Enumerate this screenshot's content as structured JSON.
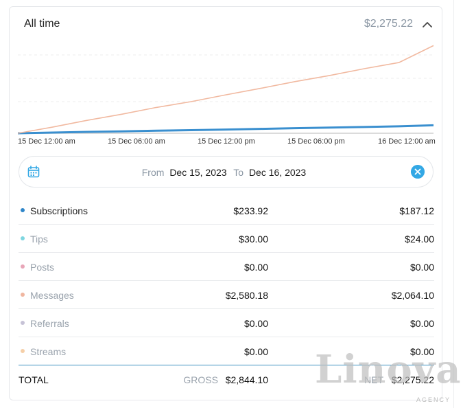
{
  "header": {
    "title": "All time",
    "amount": "$2,275.22",
    "collapse_icon": "chevron-up-icon"
  },
  "chart_data": {
    "type": "line",
    "x_ticks": [
      "15 Dec 12:00 am",
      "15 Dec 06:00 am",
      "15 Dec 12:00 pm",
      "15 Dec 06:00 pm",
      "16 Dec 12:00 am"
    ],
    "x": [
      0,
      2,
      4,
      6,
      8,
      10,
      12,
      14,
      16,
      18,
      20,
      22,
      24
    ],
    "series": [
      {
        "color": "#f1b9a0",
        "values": [
          0,
          180,
          380,
          560,
          760,
          930,
          1130,
          1320,
          1520,
          1700,
          1900,
          2080,
          2580
        ]
      },
      {
        "color": "#3a8fcf",
        "values": [
          0,
          20,
          40,
          55,
          75,
          90,
          110,
          130,
          150,
          165,
          185,
          205,
          234
        ]
      },
      {
        "color": "#cfcfcf",
        "values": [
          0,
          0,
          0,
          0,
          0,
          0,
          0,
          0,
          0,
          0,
          0,
          0,
          0
        ]
      }
    ],
    "grid": true
  },
  "date_range": {
    "from_label": "From",
    "from_value": "Dec 15, 2023",
    "to_label": "To",
    "to_value": "Dec 16, 2023",
    "calendar_icon": "calendar-icon",
    "clear_icon": "close-icon"
  },
  "rows": [
    {
      "name": "Subscriptions",
      "color": "#2f86c9",
      "gross": "$233.92",
      "net": "$187.12"
    },
    {
      "name": "Tips",
      "color": "#7fd6e0",
      "gross": "$30.00",
      "net": "$24.00"
    },
    {
      "name": "Posts",
      "color": "#e8a6b8",
      "gross": "$0.00",
      "net": "$0.00"
    },
    {
      "name": "Messages",
      "color": "#f0b6a0",
      "gross": "$2,580.18",
      "net": "$2,064.10"
    },
    {
      "name": "Referrals",
      "color": "#c6c2d6",
      "gross": "$0.00",
      "net": "$0.00"
    },
    {
      "name": "Streams",
      "color": "#f5cfa8",
      "gross": "$0.00",
      "net": "$0.00"
    }
  ],
  "total": {
    "label": "TOTAL",
    "gross_label": "GROSS",
    "gross_value": "$2,844.10",
    "net_label": "NET",
    "net_value": "$2,275.22"
  },
  "watermark": {
    "title": "Linova",
    "subtitle": "AGENCY"
  }
}
